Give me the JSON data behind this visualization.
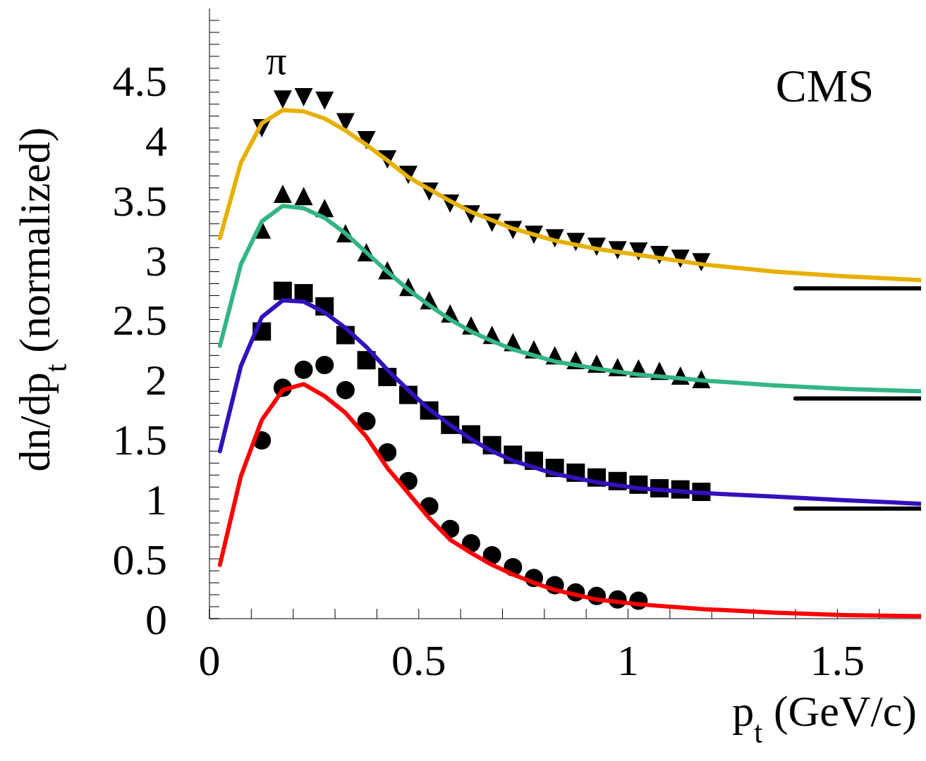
{
  "chart_data": {
    "type": "scatter",
    "xlabel": "p$_{t}$ (GeV/c)",
    "ylabel": "dn/dp$_{t}$ (normalized)",
    "annotations": [
      "π",
      "CMS"
    ],
    "xlim": [
      0,
      1.7
    ],
    "ylim": [
      0,
      5.1
    ],
    "xticks": [
      0,
      {
        "value": 0.1,
        "label": null
      },
      {
        "value": 0.2,
        "label": null
      },
      {
        "value": 0.3,
        "label": null
      },
      {
        "value": 0.4,
        "label": null
      },
      0.5,
      {
        "value": 0.6,
        "label": null
      },
      {
        "value": 0.7,
        "label": null
      },
      {
        "value": 0.8,
        "label": null
      },
      {
        "value": 0.9,
        "label": null
      },
      1,
      {
        "value": 1.1,
        "label": null
      },
      {
        "value": 1.2,
        "label": null
      },
      {
        "value": 1.3,
        "label": null
      },
      {
        "value": 1.4,
        "label": null
      },
      1.5,
      {
        "value": 1.6,
        "label": null
      }
    ],
    "yticks": [
      0,
      {
        "value": 0.1,
        "label": null
      },
      {
        "value": 0.2,
        "label": null
      },
      {
        "value": 0.3,
        "label": null
      },
      {
        "value": 0.4,
        "label": null
      },
      0.5,
      {
        "value": 0.6,
        "label": null
      },
      {
        "value": 0.7,
        "label": null
      },
      {
        "value": 0.8,
        "label": null
      },
      {
        "value": 0.9,
        "label": null
      },
      1,
      {
        "value": 1.1,
        "label": null
      },
      {
        "value": 1.2,
        "label": null
      },
      {
        "value": 1.3,
        "label": null
      },
      {
        "value": 1.4,
        "label": null
      },
      1.5,
      {
        "value": 1.6,
        "label": null
      },
      {
        "value": 1.7,
        "label": null
      },
      {
        "value": 1.8,
        "label": null
      },
      {
        "value": 1.9,
        "label": null
      },
      2,
      {
        "value": 2.1,
        "label": null
      },
      {
        "value": 2.2,
        "label": null
      },
      {
        "value": 2.3,
        "label": null
      },
      {
        "value": 2.4,
        "label": null
      },
      2.5,
      {
        "value": 2.6,
        "label": null
      },
      {
        "value": 2.7,
        "label": null
      },
      {
        "value": 2.8,
        "label": null
      },
      {
        "value": 2.9,
        "label": null
      },
      3,
      {
        "value": 3.1,
        "label": null
      },
      {
        "value": 3.2,
        "label": null
      },
      {
        "value": 3.3,
        "label": null
      },
      {
        "value": 3.4,
        "label": null
      },
      3.5,
      {
        "value": 3.6,
        "label": null
      },
      {
        "value": 3.7,
        "label": null
      },
      {
        "value": 3.8,
        "label": null
      },
      {
        "value": 3.9,
        "label": null
      },
      4,
      {
        "value": 4.1,
        "label": null
      },
      {
        "value": 4.2,
        "label": null
      },
      {
        "value": 4.3,
        "label": null
      },
      {
        "value": 4.4,
        "label": null
      },
      4.5,
      {
        "value": 4.6,
        "label": null
      },
      {
        "value": 4.7,
        "label": null
      },
      {
        "value": 4.8,
        "label": null
      },
      {
        "value": 4.9,
        "label": null
      },
      {
        "value": 5,
        "label": null
      }
    ],
    "grid": false,
    "line_style": "solid",
    "series": [
      {
        "marker": "circle",
        "color": "#000000",
        "x": [
          0.125,
          0.175,
          0.225,
          0.275,
          0.325,
          0.375,
          0.425,
          0.475,
          0.525,
          0.575,
          0.625,
          0.675,
          0.725,
          0.775,
          0.825,
          0.875,
          0.925,
          0.975,
          1.025
        ],
        "values": [
          1.49,
          1.93,
          2.08,
          2.12,
          1.91,
          1.65,
          1.39,
          1.15,
          0.94,
          0.75,
          0.63,
          0.53,
          0.43,
          0.34,
          0.28,
          0.22,
          0.19,
          0.16,
          0.15
        ]
      },
      {
        "marker": "square",
        "color": "#000000",
        "x": [
          0.125,
          0.175,
          0.225,
          0.275,
          0.325,
          0.375,
          0.425,
          0.475,
          0.525,
          0.575,
          0.625,
          0.675,
          0.725,
          0.775,
          0.825,
          0.875,
          0.925,
          0.975,
          1.025,
          1.075,
          1.125,
          1.175
        ],
        "values": [
          2.4,
          2.74,
          2.72,
          2.61,
          2.37,
          2.16,
          2.02,
          1.87,
          1.74,
          1.62,
          1.54,
          1.45,
          1.37,
          1.32,
          1.26,
          1.22,
          1.18,
          1.15,
          1.12,
          1.09,
          1.08,
          1.06
        ]
      },
      {
        "marker": "triangle",
        "color": "#000000",
        "x": [
          0.125,
          0.175,
          0.225,
          0.275,
          0.325,
          0.375,
          0.425,
          0.475,
          0.525,
          0.575,
          0.625,
          0.675,
          0.725,
          0.775,
          0.825,
          0.875,
          0.925,
          0.975,
          1.025,
          1.075,
          1.125,
          1.175
        ],
        "values": [
          3.24,
          3.54,
          3.52,
          3.42,
          3.21,
          3.05,
          2.9,
          2.76,
          2.65,
          2.54,
          2.44,
          2.36,
          2.3,
          2.24,
          2.19,
          2.15,
          2.12,
          2.09,
          2.08,
          2.06,
          2.02,
          1.99
        ]
      },
      {
        "marker": "triangle-down",
        "color": "#000000",
        "x": [
          0.125,
          0.175,
          0.225,
          0.275,
          0.325,
          0.375,
          0.425,
          0.475,
          0.525,
          0.575,
          0.625,
          0.675,
          0.725,
          0.775,
          0.825,
          0.875,
          0.925,
          0.975,
          1.025,
          1.075,
          1.125,
          1.175
        ],
        "values": [
          4.11,
          4.35,
          4.37,
          4.34,
          4.16,
          4.01,
          3.85,
          3.72,
          3.58,
          3.48,
          3.39,
          3.32,
          3.26,
          3.22,
          3.19,
          3.16,
          3.12,
          3.09,
          3.08,
          3.05,
          3.02,
          2.99
        ]
      },
      {
        "type": "line",
        "color": "#ff0000",
        "x": [
          0.025,
          0.075,
          0.125,
          0.175,
          0.225,
          0.275,
          0.325,
          0.375,
          0.425,
          0.475,
          0.525,
          0.575,
          0.625,
          0.675,
          0.725,
          0.775,
          0.825,
          0.925,
          1.025,
          1.18,
          1.35,
          1.52,
          1.7
        ],
        "values": [
          0.45,
          1.19,
          1.66,
          1.91,
          1.96,
          1.86,
          1.72,
          1.52,
          1.26,
          1.05,
          0.84,
          0.66,
          0.55,
          0.45,
          0.37,
          0.3,
          0.24,
          0.16,
          0.12,
          0.08,
          0.05,
          0.03,
          0.02
        ]
      },
      {
        "type": "line",
        "color": "#3311bb",
        "x": [
          0.025,
          0.075,
          0.125,
          0.175,
          0.225,
          0.275,
          0.325,
          0.375,
          0.425,
          0.475,
          0.525,
          0.575,
          0.625,
          0.675,
          0.725,
          0.825,
          0.925,
          1.025,
          1.18,
          1.35,
          1.52,
          1.7
        ],
        "values": [
          1.4,
          2.11,
          2.52,
          2.66,
          2.65,
          2.56,
          2.43,
          2.27,
          2.08,
          1.91,
          1.75,
          1.62,
          1.5,
          1.4,
          1.32,
          1.21,
          1.14,
          1.09,
          1.05,
          1.02,
          0.99,
          0.96
        ]
      },
      {
        "type": "line",
        "color": "#33b584",
        "x": [
          0.025,
          0.075,
          0.125,
          0.175,
          0.225,
          0.275,
          0.325,
          0.375,
          0.425,
          0.475,
          0.525,
          0.575,
          0.625,
          0.675,
          0.725,
          0.825,
          0.925,
          1.025,
          1.18,
          1.35,
          1.52,
          1.7
        ],
        "values": [
          2.28,
          2.96,
          3.32,
          3.45,
          3.43,
          3.35,
          3.22,
          3.06,
          2.9,
          2.75,
          2.62,
          2.5,
          2.4,
          2.32,
          2.25,
          2.15,
          2.09,
          2.04,
          1.99,
          1.95,
          1.92,
          1.9
        ]
      },
      {
        "type": "line",
        "color": "#e6b000",
        "x": [
          0.025,
          0.075,
          0.125,
          0.175,
          0.225,
          0.275,
          0.325,
          0.375,
          0.425,
          0.475,
          0.525,
          0.575,
          0.625,
          0.675,
          0.725,
          0.825,
          0.925,
          1.025,
          1.18,
          1.35,
          1.52,
          1.7
        ],
        "values": [
          3.18,
          3.81,
          4.14,
          4.25,
          4.24,
          4.18,
          4.08,
          3.96,
          3.83,
          3.69,
          3.59,
          3.49,
          3.4,
          3.33,
          3.26,
          3.16,
          3.09,
          3.04,
          2.96,
          2.9,
          2.86,
          2.83
        ]
      },
      {
        "type": "line",
        "color": "#000000",
        "x": [
          1.4,
          1.7
        ],
        "values": [
          0.92,
          0.92
        ]
      },
      {
        "type": "line",
        "color": "#000000",
        "x": [
          1.4,
          1.7
        ],
        "values": [
          1.84,
          1.84
        ]
      },
      {
        "type": "line",
        "color": "#000000",
        "x": [
          1.4,
          1.7
        ],
        "values": [
          2.76,
          2.76
        ]
      }
    ]
  }
}
